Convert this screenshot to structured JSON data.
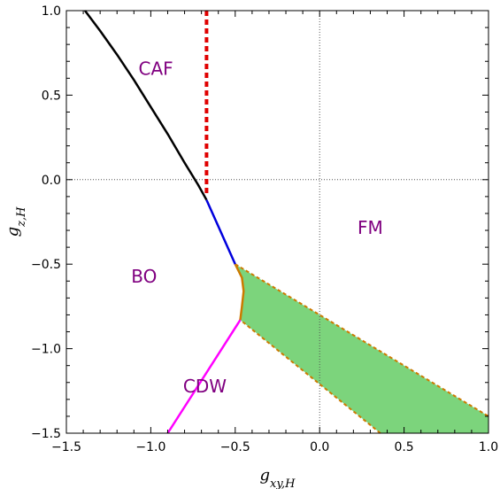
{
  "chart_data": {
    "type": "line",
    "title": "",
    "xlabel": "g_{xy,H}",
    "ylabel": "g_{z,H}",
    "xlim": [
      -1.5,
      1.0
    ],
    "ylim": [
      -1.5,
      1.0
    ],
    "xticks": [
      -1.5,
      -1.0,
      -0.5,
      0.0,
      0.5,
      1.0
    ],
    "yticks": [
      -1.5,
      -1.0,
      -0.5,
      0.0,
      0.5,
      1.0
    ],
    "xtick_labels": [
      "−1.5",
      "−1.0",
      "−0.5",
      "0.0",
      "0.5",
      "1.0"
    ],
    "ytick_labels": [
      "−1.5",
      "−1.0",
      "−0.5",
      "0.0",
      "0.5",
      "1.0"
    ],
    "grid": false,
    "reference_lines": [
      {
        "orientation": "vertical",
        "value": 0.0,
        "style": "dotted"
      },
      {
        "orientation": "horizontal",
        "value": 0.0,
        "style": "dotted"
      }
    ],
    "curves": [
      {
        "color": "#000000",
        "style": "solid",
        "x": [
          -1.39,
          -1.3,
          -1.2,
          -1.1,
          -1.0,
          -0.9,
          -0.8,
          -0.72,
          -0.67
        ],
        "y": [
          1.0,
          0.88,
          0.74,
          0.59,
          0.43,
          0.27,
          0.1,
          -0.03,
          -0.12
        ]
      },
      {
        "color": "#e00000",
        "style": "dashed",
        "x": [
          -0.67,
          -0.67
        ],
        "y": [
          1.0,
          -0.09
        ]
      },
      {
        "color": "#0000dd",
        "style": "solid",
        "x": [
          -0.67,
          -0.5
        ],
        "y": [
          -0.12,
          -0.5
        ]
      },
      {
        "color": "#ff00ff",
        "style": "solid",
        "x": [
          -0.47,
          -0.9
        ],
        "y": [
          -0.83,
          -1.5
        ]
      },
      {
        "color": "#cc7a00",
        "style": "solid",
        "x": [
          -0.5,
          -0.46,
          -0.45,
          -0.46,
          -0.47
        ],
        "y": [
          -0.5,
          -0.58,
          -0.66,
          -0.75,
          -0.83
        ]
      }
    ],
    "shaded_region": {
      "color": "#7cd47c",
      "edge_color": "#cc7a00",
      "edge_style": "dashed",
      "x": [
        -0.5,
        1.0,
        1.0,
        0.36,
        -0.47,
        -0.46,
        -0.45,
        -0.46
      ],
      "y": [
        -0.5,
        -1.4,
        -1.5,
        -1.5,
        -0.83,
        -0.75,
        -0.66,
        -0.58
      ]
    },
    "annotations": [
      {
        "text": "CAF",
        "x": -0.97,
        "y": 0.62
      },
      {
        "text": "FM",
        "x": 0.3,
        "y": -0.32
      },
      {
        "text": "BO",
        "x": -1.04,
        "y": -0.61
      },
      {
        "text": "CDW",
        "x": -0.68,
        "y": -1.26
      }
    ]
  }
}
